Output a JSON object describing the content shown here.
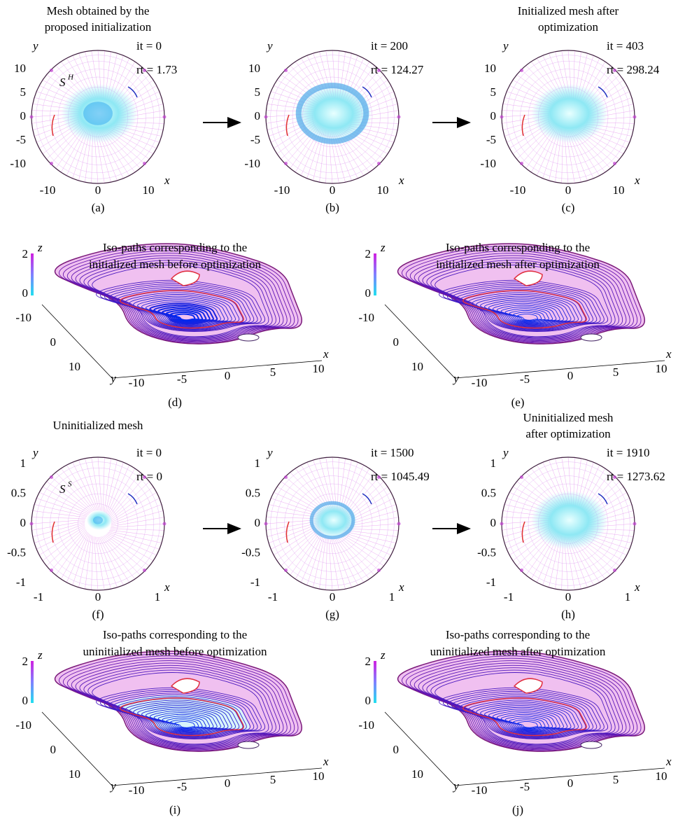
{
  "mesh_panels": [
    {
      "title": [
        "Mesh obtained by the",
        "proposed initialization"
      ],
      "it": "it = 0",
      "rt": "rt = 1.73",
      "surface": {
        "symbol": "S",
        "sup": "H"
      },
      "x_label": "x",
      "y_label": "y",
      "xticks": [
        -10,
        0,
        10
      ],
      "yticks": [
        10,
        5,
        0,
        -5,
        -10
      ],
      "caption": "(a)"
    },
    {
      "title": [],
      "it": "it = 200",
      "rt": "rt = 124.27",
      "x_label": "x",
      "y_label": "y",
      "xticks": [
        -10,
        0,
        10
      ],
      "yticks": [
        10,
        5,
        0,
        -5,
        -10
      ],
      "caption": "(b)"
    },
    {
      "title": [
        "Initialized mesh after",
        "optimization"
      ],
      "it": "it = 403",
      "rt": "rt = 298.24",
      "x_label": "x",
      "y_label": "y",
      "xticks": [
        -10,
        0,
        10
      ],
      "yticks": [
        10,
        5,
        0,
        -5,
        -10
      ],
      "caption": "(c)"
    },
    {
      "title": [
        "Uninitialized mesh"
      ],
      "it": "it = 0",
      "rt": "rt = 0",
      "surface": {
        "symbol": "S",
        "sup": "S"
      },
      "x_label": "x",
      "y_label": "y",
      "xticks": [
        -1,
        0,
        1
      ],
      "yticks": [
        1,
        0.5,
        0,
        -0.5,
        -1
      ],
      "caption": "(f)"
    },
    {
      "title": [],
      "it": "it = 1500",
      "rt": "rt = 1045.49",
      "x_label": "x",
      "y_label": "y",
      "xticks": [
        -1,
        0,
        1
      ],
      "yticks": [
        1,
        0.5,
        0,
        -0.5,
        -1
      ],
      "caption": "(g)"
    },
    {
      "title": [
        "Uninitialized mesh",
        "after optimization"
      ],
      "it": "it = 1910",
      "rt": "rt = 1273.62",
      "x_label": "x",
      "y_label": "y",
      "xticks": [
        -1,
        0,
        1
      ],
      "yticks": [
        1,
        0.5,
        0,
        -0.5,
        -1
      ],
      "caption": "(h)"
    }
  ],
  "iso_panels": [
    {
      "title": [
        "Iso-paths corresponding to the",
        "initialized mesh before optimization"
      ],
      "z_label": "z",
      "zticks": [
        2,
        0
      ],
      "x_label": "x",
      "y_label": "y",
      "xticks": [
        -10,
        -5,
        0,
        5,
        10
      ],
      "yticks": [
        -10,
        0,
        10
      ],
      "caption": "(d)"
    },
    {
      "title": [
        "Iso-paths corresponding to the",
        "initialized mesh after optimization"
      ],
      "z_label": "z",
      "zticks": [
        2,
        0
      ],
      "x_label": "x",
      "y_label": "y",
      "xticks": [
        -10,
        -5,
        0,
        5,
        10
      ],
      "yticks": [
        -10,
        0,
        10
      ],
      "caption": "(e)"
    },
    {
      "title": [
        "Iso-paths corresponding to the",
        "uninitialized mesh before optimization"
      ],
      "z_label": "z",
      "zticks": [
        2,
        0
      ],
      "x_label": "x",
      "y_label": "y",
      "xticks": [
        -10,
        -5,
        0,
        5,
        10
      ],
      "yticks": [
        -10,
        0,
        10
      ],
      "caption": "(i)"
    },
    {
      "title": [
        "Iso-paths corresponding to the",
        "uninitialized mesh after optimization"
      ],
      "z_label": "z",
      "zticks": [
        2,
        0
      ],
      "x_label": "x",
      "y_label": "y",
      "xticks": [
        -10,
        -5,
        0,
        5,
        10
      ],
      "yticks": [
        -10,
        0,
        10
      ],
      "caption": "(j)"
    }
  ]
}
